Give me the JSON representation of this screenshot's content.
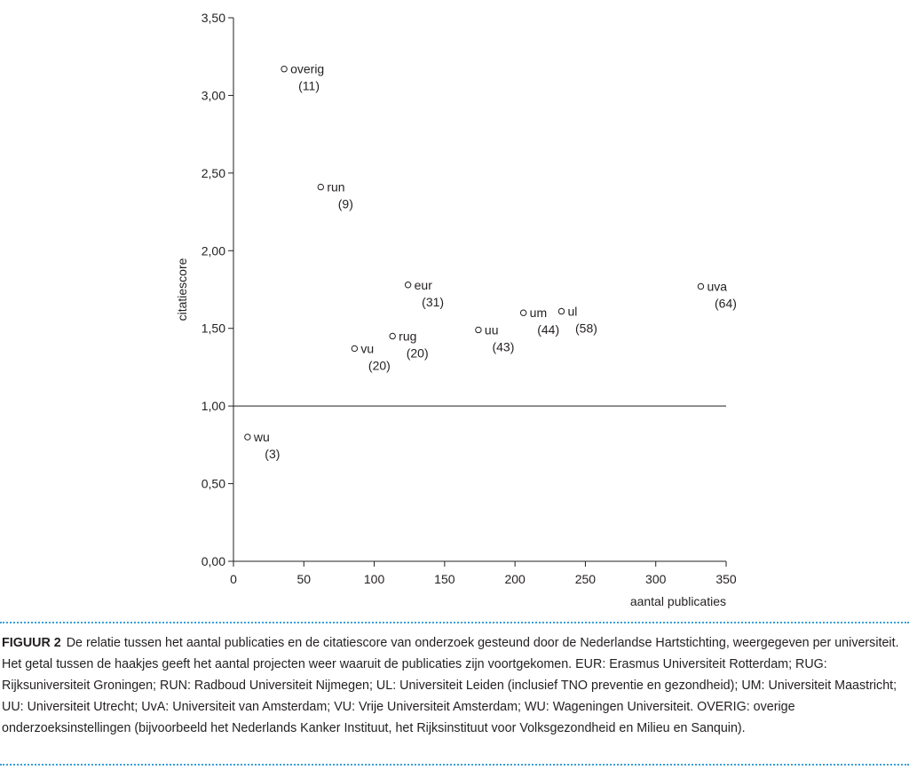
{
  "chart_data": {
    "type": "scatter",
    "xlabel": "aantal publicaties",
    "ylabel": "citatiescore",
    "xlim": [
      0,
      350
    ],
    "ylim": [
      0,
      3.5
    ],
    "x_ticks": [
      0,
      50,
      100,
      150,
      200,
      250,
      300,
      350
    ],
    "y_ticks": [
      0,
      0.5,
      1.0,
      1.5,
      2.0,
      2.5,
      3.0,
      3.5
    ],
    "x_tick_labels": [
      "0",
      "50",
      "100",
      "150",
      "200",
      "250",
      "300",
      "350"
    ],
    "y_tick_labels": [
      "0,00",
      "0,50",
      "1,00",
      "1,50",
      "2,00",
      "2,50",
      "3,00",
      "3,50"
    ],
    "reference_line_y": 1.0,
    "grid": false,
    "points": [
      {
        "label": "overig",
        "count": "(11)",
        "x": 36,
        "y": 3.17
      },
      {
        "label": "run",
        "count": "(9)",
        "x": 62,
        "y": 2.41
      },
      {
        "label": "eur",
        "count": "(31)",
        "x": 124,
        "y": 1.78
      },
      {
        "label": "vu",
        "count": "(20)",
        "x": 86,
        "y": 1.37
      },
      {
        "label": "rug",
        "count": "(20)",
        "x": 113,
        "y": 1.45
      },
      {
        "label": "uu",
        "count": "(43)",
        "x": 174,
        "y": 1.49
      },
      {
        "label": "um",
        "count": "(44)",
        "x": 206,
        "y": 1.6
      },
      {
        "label": "ul",
        "count": "(58)",
        "x": 233,
        "y": 1.61
      },
      {
        "label": "uva",
        "count": "(64)",
        "x": 332,
        "y": 1.77
      },
      {
        "label": "wu",
        "count": "(3)",
        "x": 10,
        "y": 0.8
      }
    ]
  },
  "caption": {
    "label": "FIGUUR 2",
    "text": "De relatie tussen het aantal publicaties en de citatiescore van onderzoek gesteund door de Nederlandse Hartstichting, weergegeven per universiteit. Het getal tussen de haakjes geeft het aantal projecten weer waaruit de publicaties zijn voortgekomen. EUR: Erasmus Universiteit Rotterdam; RUG: Rijksuniversiteit Groningen; RUN: Radboud Universiteit Nijmegen; UL: Universiteit Leiden (inclusief TNO preventie en gezondheid); UM: Universiteit Maastricht; UU: Universiteit Utrecht; UvA: Universiteit van Amsterdam; VU: Vrije Universiteit Amsterdam; WU: Wageningen Universiteit. OVERIG: overige onderzoeksinstellingen (bijvoorbeeld het Nederlands Kanker Instituut, het Rijksinstituut voor Volksgezondheid en Milieu en Sanquin)."
  }
}
